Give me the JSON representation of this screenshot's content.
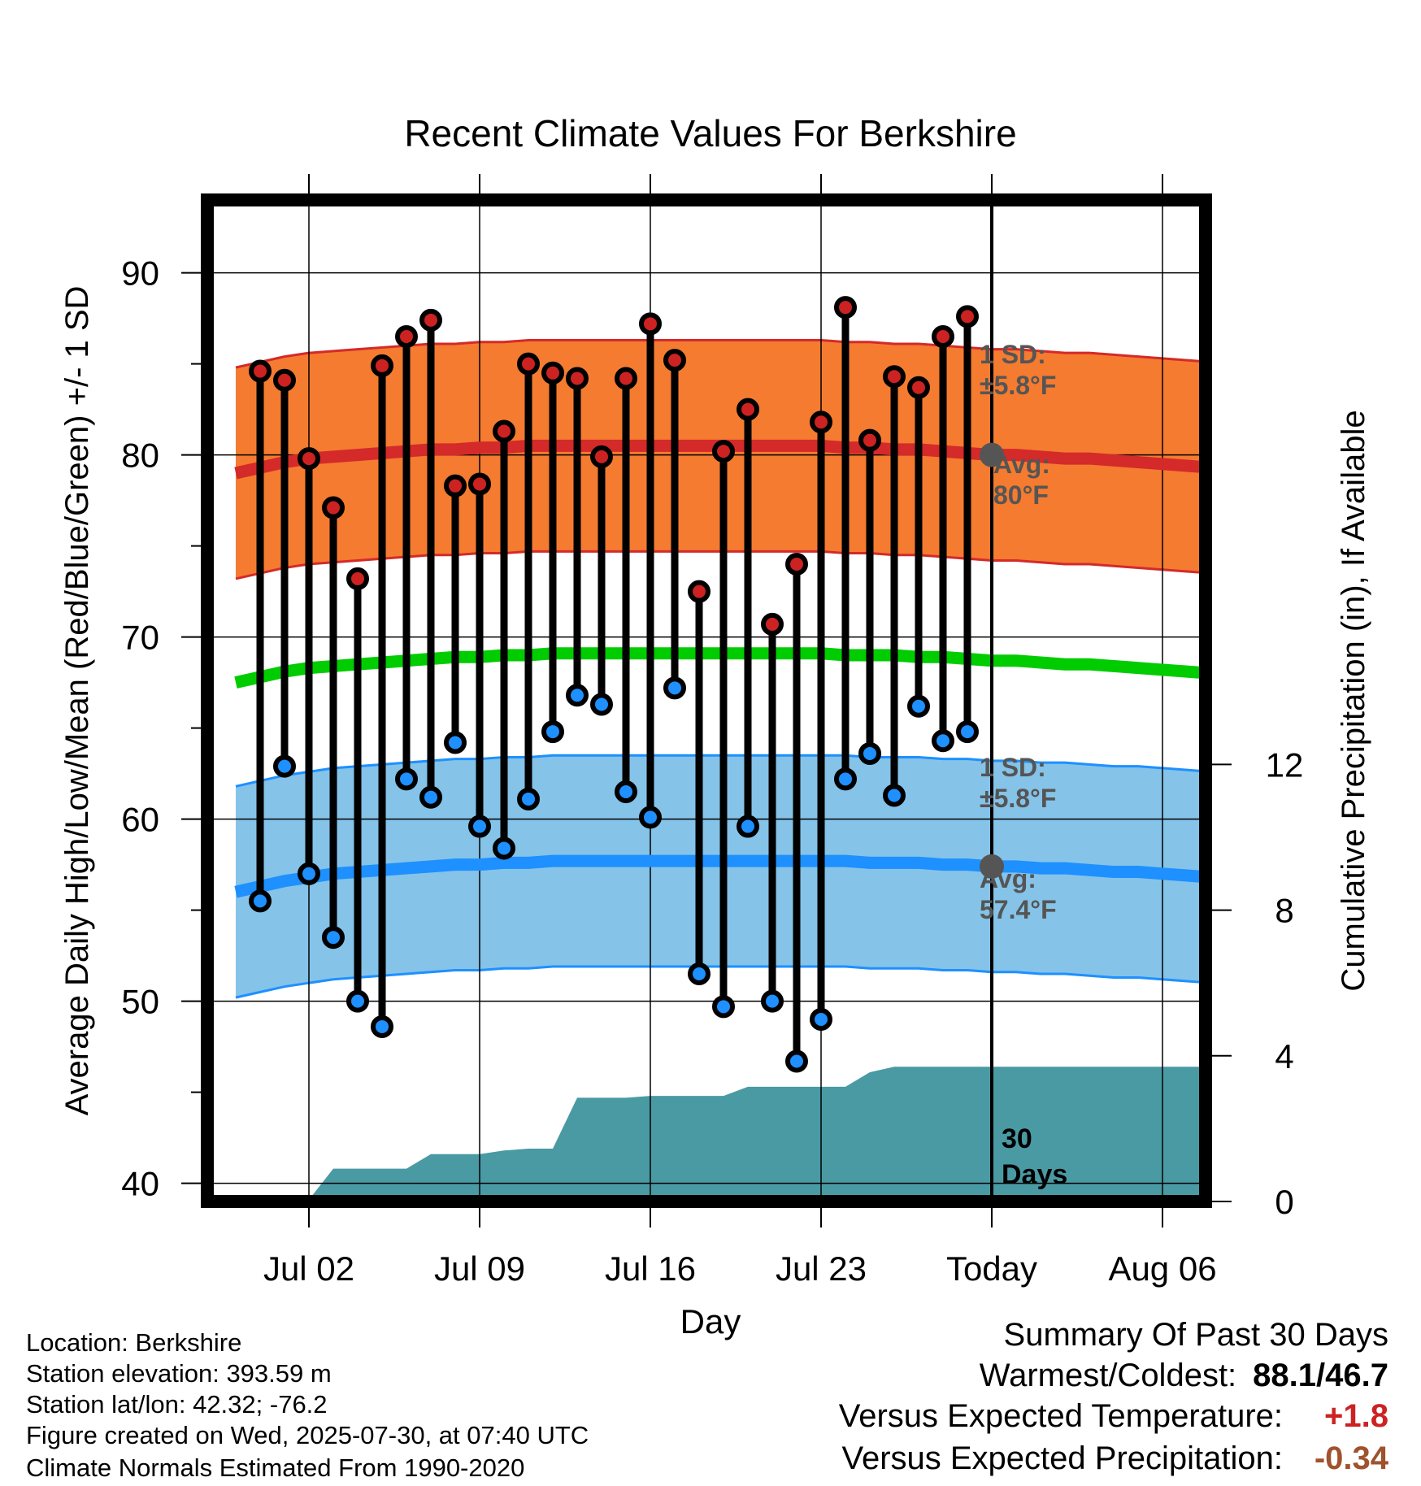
{
  "chart_data": {
    "type": "line",
    "title": "Recent Climate Values For Berkshire",
    "xlabel": "Day",
    "ylabel": "Average Daily High/Low/Mean (Red/Blue/Green) +/- 1 SD",
    "y2label": "Cumulative Precipitation (in), If Available",
    "ylim": [
      39,
      94
    ],
    "y_ticks": [
      40,
      50,
      60,
      70,
      80,
      90
    ],
    "y2_ticks": [
      0,
      4,
      8,
      12
    ],
    "y2lim": [
      0,
      27.5
    ],
    "x_dates": [
      "Jun 29",
      "Jun 30",
      "Jul 01",
      "Jul 02",
      "Jul 03",
      "Jul 04",
      "Jul 05",
      "Jul 06",
      "Jul 07",
      "Jul 08",
      "Jul 09",
      "Jul 10",
      "Jul 11",
      "Jul 12",
      "Jul 13",
      "Jul 14",
      "Jul 15",
      "Jul 16",
      "Jul 17",
      "Jul 18",
      "Jul 19",
      "Jul 20",
      "Jul 21",
      "Jul 22",
      "Jul 23",
      "Jul 24",
      "Jul 25",
      "Jul 26",
      "Jul 27",
      "Jul 28",
      "Jul 29",
      "Jul 30",
      "Jul 31",
      "Aug 01",
      "Aug 02",
      "Aug 03",
      "Aug 04",
      "Aug 05",
      "Aug 06",
      "Aug 07",
      "Aug 08",
      "Aug 09"
    ],
    "x_tick_labels": [
      "Jul 02",
      "Jul 09",
      "Jul 16",
      "Jul 23",
      "Today",
      "Aug 06"
    ],
    "today_label_lines": [
      "30",
      "Days"
    ],
    "daily": {
      "dates": [
        "Jun 30",
        "Jul 01",
        "Jul 02",
        "Jul 03",
        "Jul 04",
        "Jul 05",
        "Jul 06",
        "Jul 07",
        "Jul 08",
        "Jul 09",
        "Jul 10",
        "Jul 11",
        "Jul 12",
        "Jul 13",
        "Jul 14",
        "Jul 15",
        "Jul 16",
        "Jul 17",
        "Jul 18",
        "Jul 19",
        "Jul 20",
        "Jul 21",
        "Jul 22",
        "Jul 23",
        "Jul 24",
        "Jul 25",
        "Jul 26",
        "Jul 27",
        "Jul 28",
        "Jul 29"
      ],
      "highs": [
        84.6,
        84.1,
        79.8,
        77.1,
        73.2,
        84.9,
        86.5,
        87.4,
        78.3,
        78.4,
        81.3,
        85.0,
        84.5,
        84.2,
        79.9,
        84.2,
        87.2,
        85.2,
        72.5,
        80.2,
        82.5,
        70.7,
        74.0,
        81.8,
        88.1,
        80.8,
        84.3,
        83.7,
        86.5,
        87.6
      ],
      "lows": [
        55.5,
        62.9,
        57.0,
        53.5,
        50.0,
        48.6,
        62.2,
        61.2,
        64.2,
        59.6,
        58.4,
        61.1,
        64.8,
        66.8,
        66.3,
        61.5,
        60.1,
        67.2,
        51.5,
        49.7,
        59.6,
        50.0,
        46.7,
        49.0,
        62.2,
        63.6,
        61.3,
        66.2,
        64.3,
        64.8
      ]
    },
    "normal_high": [
      79.0,
      79.3,
      79.6,
      79.8,
      79.9,
      80.0,
      80.1,
      80.2,
      80.3,
      80.3,
      80.4,
      80.4,
      80.5,
      80.5,
      80.5,
      80.5,
      80.5,
      80.5,
      80.5,
      80.5,
      80.5,
      80.5,
      80.5,
      80.5,
      80.5,
      80.4,
      80.4,
      80.3,
      80.3,
      80.2,
      80.1,
      80.0,
      80.0,
      79.9,
      79.8,
      79.8,
      79.7,
      79.6,
      79.5,
      79.4,
      79.3
    ],
    "normal_low": [
      56.0,
      56.3,
      56.6,
      56.8,
      57.0,
      57.1,
      57.2,
      57.3,
      57.4,
      57.5,
      57.5,
      57.6,
      57.6,
      57.7,
      57.7,
      57.7,
      57.7,
      57.7,
      57.7,
      57.7,
      57.7,
      57.7,
      57.7,
      57.7,
      57.7,
      57.7,
      57.6,
      57.6,
      57.6,
      57.5,
      57.5,
      57.4,
      57.4,
      57.3,
      57.3,
      57.2,
      57.1,
      57.1,
      57.0,
      56.9,
      56.8
    ],
    "normal_mean": [
      67.5,
      67.8,
      68.1,
      68.3,
      68.4,
      68.5,
      68.6,
      68.7,
      68.8,
      68.9,
      68.9,
      69.0,
      69.0,
      69.1,
      69.1,
      69.1,
      69.1,
      69.1,
      69.1,
      69.1,
      69.1,
      69.1,
      69.1,
      69.1,
      69.1,
      69.0,
      69.0,
      69.0,
      68.9,
      68.9,
      68.8,
      68.7,
      68.7,
      68.6,
      68.5,
      68.5,
      68.4,
      68.3,
      68.2,
      68.1,
      68.0
    ],
    "sd": 5.8,
    "precip": {
      "dates": [
        "Jun 29",
        "Jun 30",
        "Jul 01",
        "Jul 02",
        "Jul 03",
        "Jul 04",
        "Jul 05",
        "Jul 06",
        "Jul 07",
        "Jul 08",
        "Jul 09",
        "Jul 10",
        "Jul 11",
        "Jul 12",
        "Jul 13",
        "Jul 14",
        "Jul 15",
        "Jul 16",
        "Jul 17",
        "Jul 18",
        "Jul 19",
        "Jul 20",
        "Jul 21",
        "Jul 22",
        "Jul 23",
        "Jul 24",
        "Jul 25",
        "Jul 26",
        "Jul 27",
        "Jul 28",
        "Jul 29",
        "Jul 30",
        "Aug 09"
      ],
      "cumulative": [
        0.0,
        0.0,
        0.05,
        0.05,
        0.9,
        0.9,
        0.9,
        0.9,
        1.3,
        1.3,
        1.3,
        1.4,
        1.45,
        1.45,
        2.85,
        2.85,
        2.85,
        2.9,
        2.9,
        2.9,
        2.9,
        3.15,
        3.15,
        3.15,
        3.15,
        3.15,
        3.55,
        3.7,
        3.7,
        3.7,
        3.7,
        3.7,
        3.7
      ]
    },
    "annotations": {
      "high_sd_lines": [
        "1 SD:",
        "±5.8°F"
      ],
      "high_avg_lines": [
        "Avg:",
        "80°F"
      ],
      "low_sd_lines": [
        "1 SD:",
        "±5.8°F"
      ],
      "low_avg_lines": [
        "Avg:",
        "57.4°F"
      ]
    },
    "colors": {
      "high_band": "#f47b30",
      "high_line": "#d42a2a",
      "high_point": "#cc2222",
      "low_band": "#85c3e8",
      "low_line": "#1e90ff",
      "low_point": "#1e90ff",
      "mean_line": "#00cc00",
      "precip": "#4a9aa4",
      "annotation": "#555555"
    },
    "legend": "none",
    "grid": true
  },
  "footer": {
    "location": "Location: Berkshire",
    "elevation": "Station elevation: 393.59 m",
    "latlon": "Station lat/lon: 42.32; -76.2",
    "created": "Figure created on Wed, 2025-07-30, at 07:40 UTC",
    "normals": "Climate Normals Estimated From 1990-2020"
  },
  "summary": {
    "title": "Summary Of Past 30 Days",
    "warmest_label": "Warmest/Coldest:",
    "warmest_value": "88.1/46.7",
    "temp_label": "Versus Expected Temperature:",
    "temp_value": "+1.8",
    "temp_color": "#cc2222",
    "precip_label": "Versus Expected Precipitation:",
    "precip_value": "-0.34",
    "precip_color": "#a0522d"
  }
}
